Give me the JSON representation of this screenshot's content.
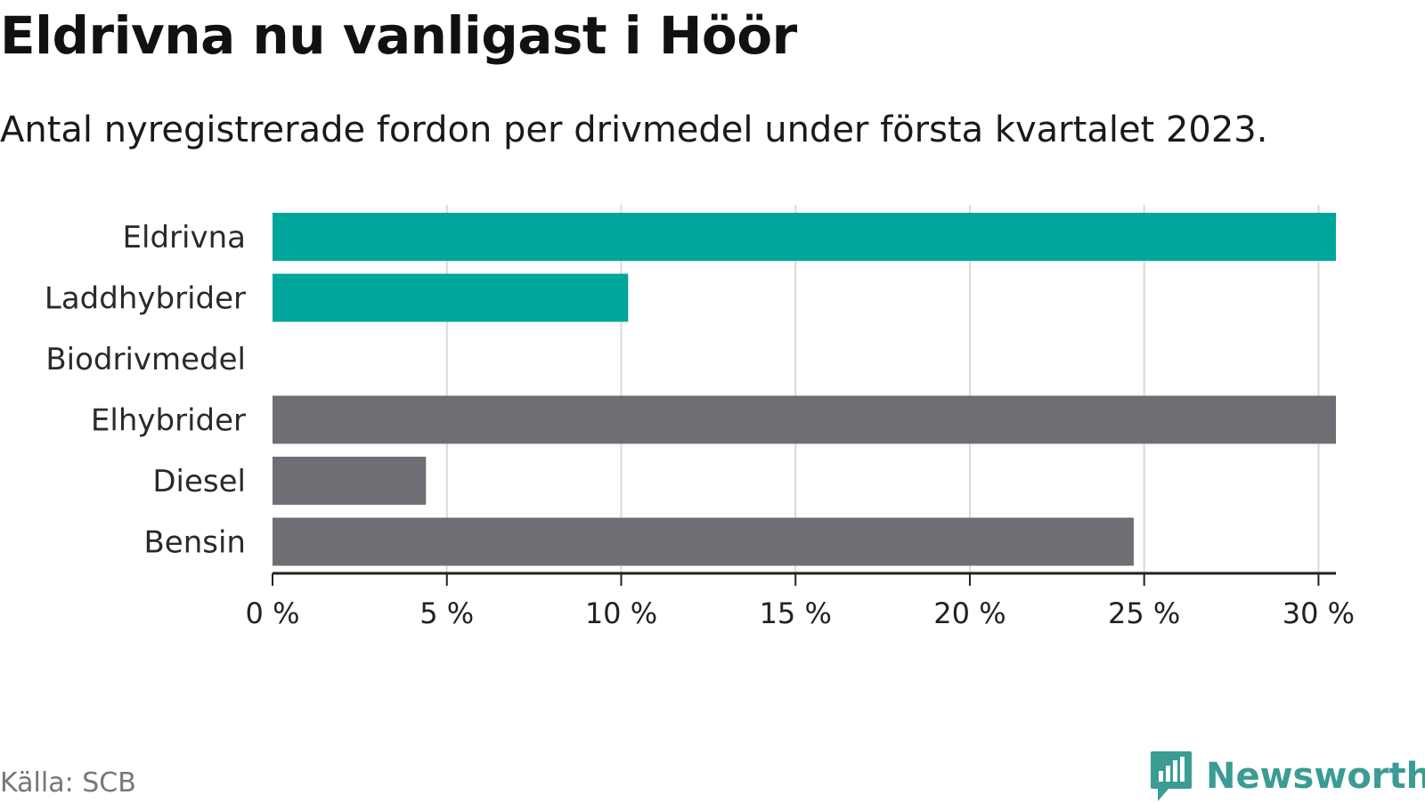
{
  "header": {
    "title": "Eldrivna nu vanligast i Höör",
    "subtitle": "Antal nyregistrerade fordon per drivmedel under första kvartalet 2023."
  },
  "footer": {
    "source": "Källa: SCB",
    "brand": "Newsworthy",
    "brand_icon": "bar-chart-speech-bubble-icon"
  },
  "colors": {
    "highlight": "#00a59b",
    "neutral": "#6f6e74",
    "grid": "#d9d9d9",
    "axis": "#222222",
    "brand": "#3a9c92",
    "source": "#777777"
  },
  "chart_data": {
    "type": "bar",
    "orientation": "horizontal",
    "categories": [
      "Eldrivna",
      "Laddhybrider",
      "Biodrivmedel",
      "Elhybrider",
      "Diesel",
      "Bensin"
    ],
    "values": [
      30.5,
      10.2,
      0,
      30.5,
      4.4,
      24.7
    ],
    "highlight": [
      true,
      true,
      true,
      false,
      false,
      false
    ],
    "x_ticks": [
      "0 %",
      "5 %",
      "10 %",
      "15 %",
      "20 %",
      "25 %",
      "30 %"
    ],
    "xlim": [
      0,
      30.5
    ],
    "grid": true,
    "legend": "none"
  }
}
